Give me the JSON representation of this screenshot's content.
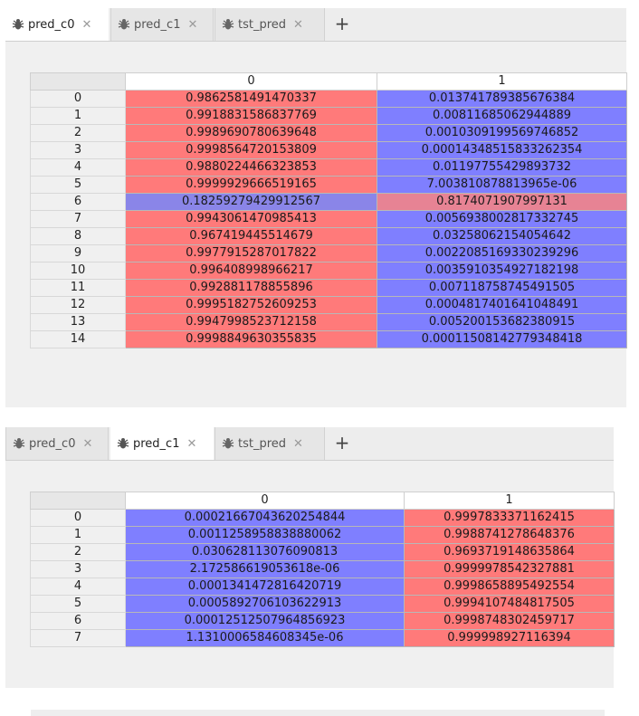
{
  "tabs_top": [
    {
      "label": "pred_c0",
      "active": true
    },
    {
      "label": "pred_c1",
      "active": false
    },
    {
      "label": "tst_pred",
      "active": false
    }
  ],
  "tabs_bottom": [
    {
      "label": "pred_c0",
      "active": false
    },
    {
      "label": "pred_c1",
      "active": true
    },
    {
      "label": "tst_pred",
      "active": false
    }
  ],
  "close_glyph": "✕",
  "add_glyph": "+",
  "colors": {
    "high": "#ff7a7a",
    "low": "#7f7fff"
  },
  "table1": {
    "columns": [
      "0",
      "1"
    ],
    "rows": [
      {
        "index": "0",
        "c0": "0.9862581491470337",
        "c1": "0.01374178938567638​4"
      },
      {
        "index": "1",
        "c0": "0.9918831586837769",
        "c1": "0.00811685062944889"
      },
      {
        "index": "2",
        "c0": "0.9989690780639648",
        "c1": "0.0010309199569746852"
      },
      {
        "index": "3",
        "c0": "0.9998564720153809",
        "c1": "0.00014348515833262354"
      },
      {
        "index": "4",
        "c0": "0.9880224466323853",
        "c1": "0.01197755429893732"
      },
      {
        "index": "5",
        "c0": "0.9999929666519165",
        "c1": "7.003810878813965e-06"
      },
      {
        "index": "6",
        "c0": "0.18259279429912567",
        "c1": "0.8174071907997131"
      },
      {
        "index": "7",
        "c0": "0.9943061470985413",
        "c1": "0.005693800281733274​5"
      },
      {
        "index": "8",
        "c0": "0.967419445514679",
        "c1": "0.03258062154054642"
      },
      {
        "index": "9",
        "c0": "0.9977915287017822",
        "c1": "0.0022085169330239296"
      },
      {
        "index": "10",
        "c0": "0.996408998966217",
        "c1": "0.0035910354927182198"
      },
      {
        "index": "11",
        "c0": "0.992881178855896",
        "c1": "0.007118758745491505"
      },
      {
        "index": "12",
        "c0": "0.9995182752609253",
        "c1": "0.0004817401641048491"
      },
      {
        "index": "13",
        "c0": "0.9947998523712158",
        "c1": "0.005200153682380915"
      },
      {
        "index": "14",
        "c0": "0.9998849630355835",
        "c1": "0.00011508142779348418"
      }
    ]
  },
  "table2": {
    "columns": [
      "0",
      "1"
    ],
    "rows": [
      {
        "index": "0",
        "c0": "0.00021667043620254844",
        "c1": "0.9997833371162415"
      },
      {
        "index": "1",
        "c0": "0.0011258958838880062",
        "c1": "0.9988741278648376"
      },
      {
        "index": "2",
        "c0": "0.030628113076090813",
        "c1": "0.9693719148635864"
      },
      {
        "index": "3",
        "c0": "2.172586619053618e-06",
        "c1": "0.9999978542327881"
      },
      {
        "index": "4",
        "c0": "0.0001341472816420719",
        "c1": "0.9998658895492554"
      },
      {
        "index": "5",
        "c0": "0.0005892706103622913",
        "c1": "0.9994107484817505"
      },
      {
        "index": "6",
        "c0": "0.00012512507964856923",
        "c1": "0.9998748302459717"
      },
      {
        "index": "7",
        "c0": "1.1310006584608345e-06",
        "c1": "0.999998927116394"
      }
    ]
  }
}
